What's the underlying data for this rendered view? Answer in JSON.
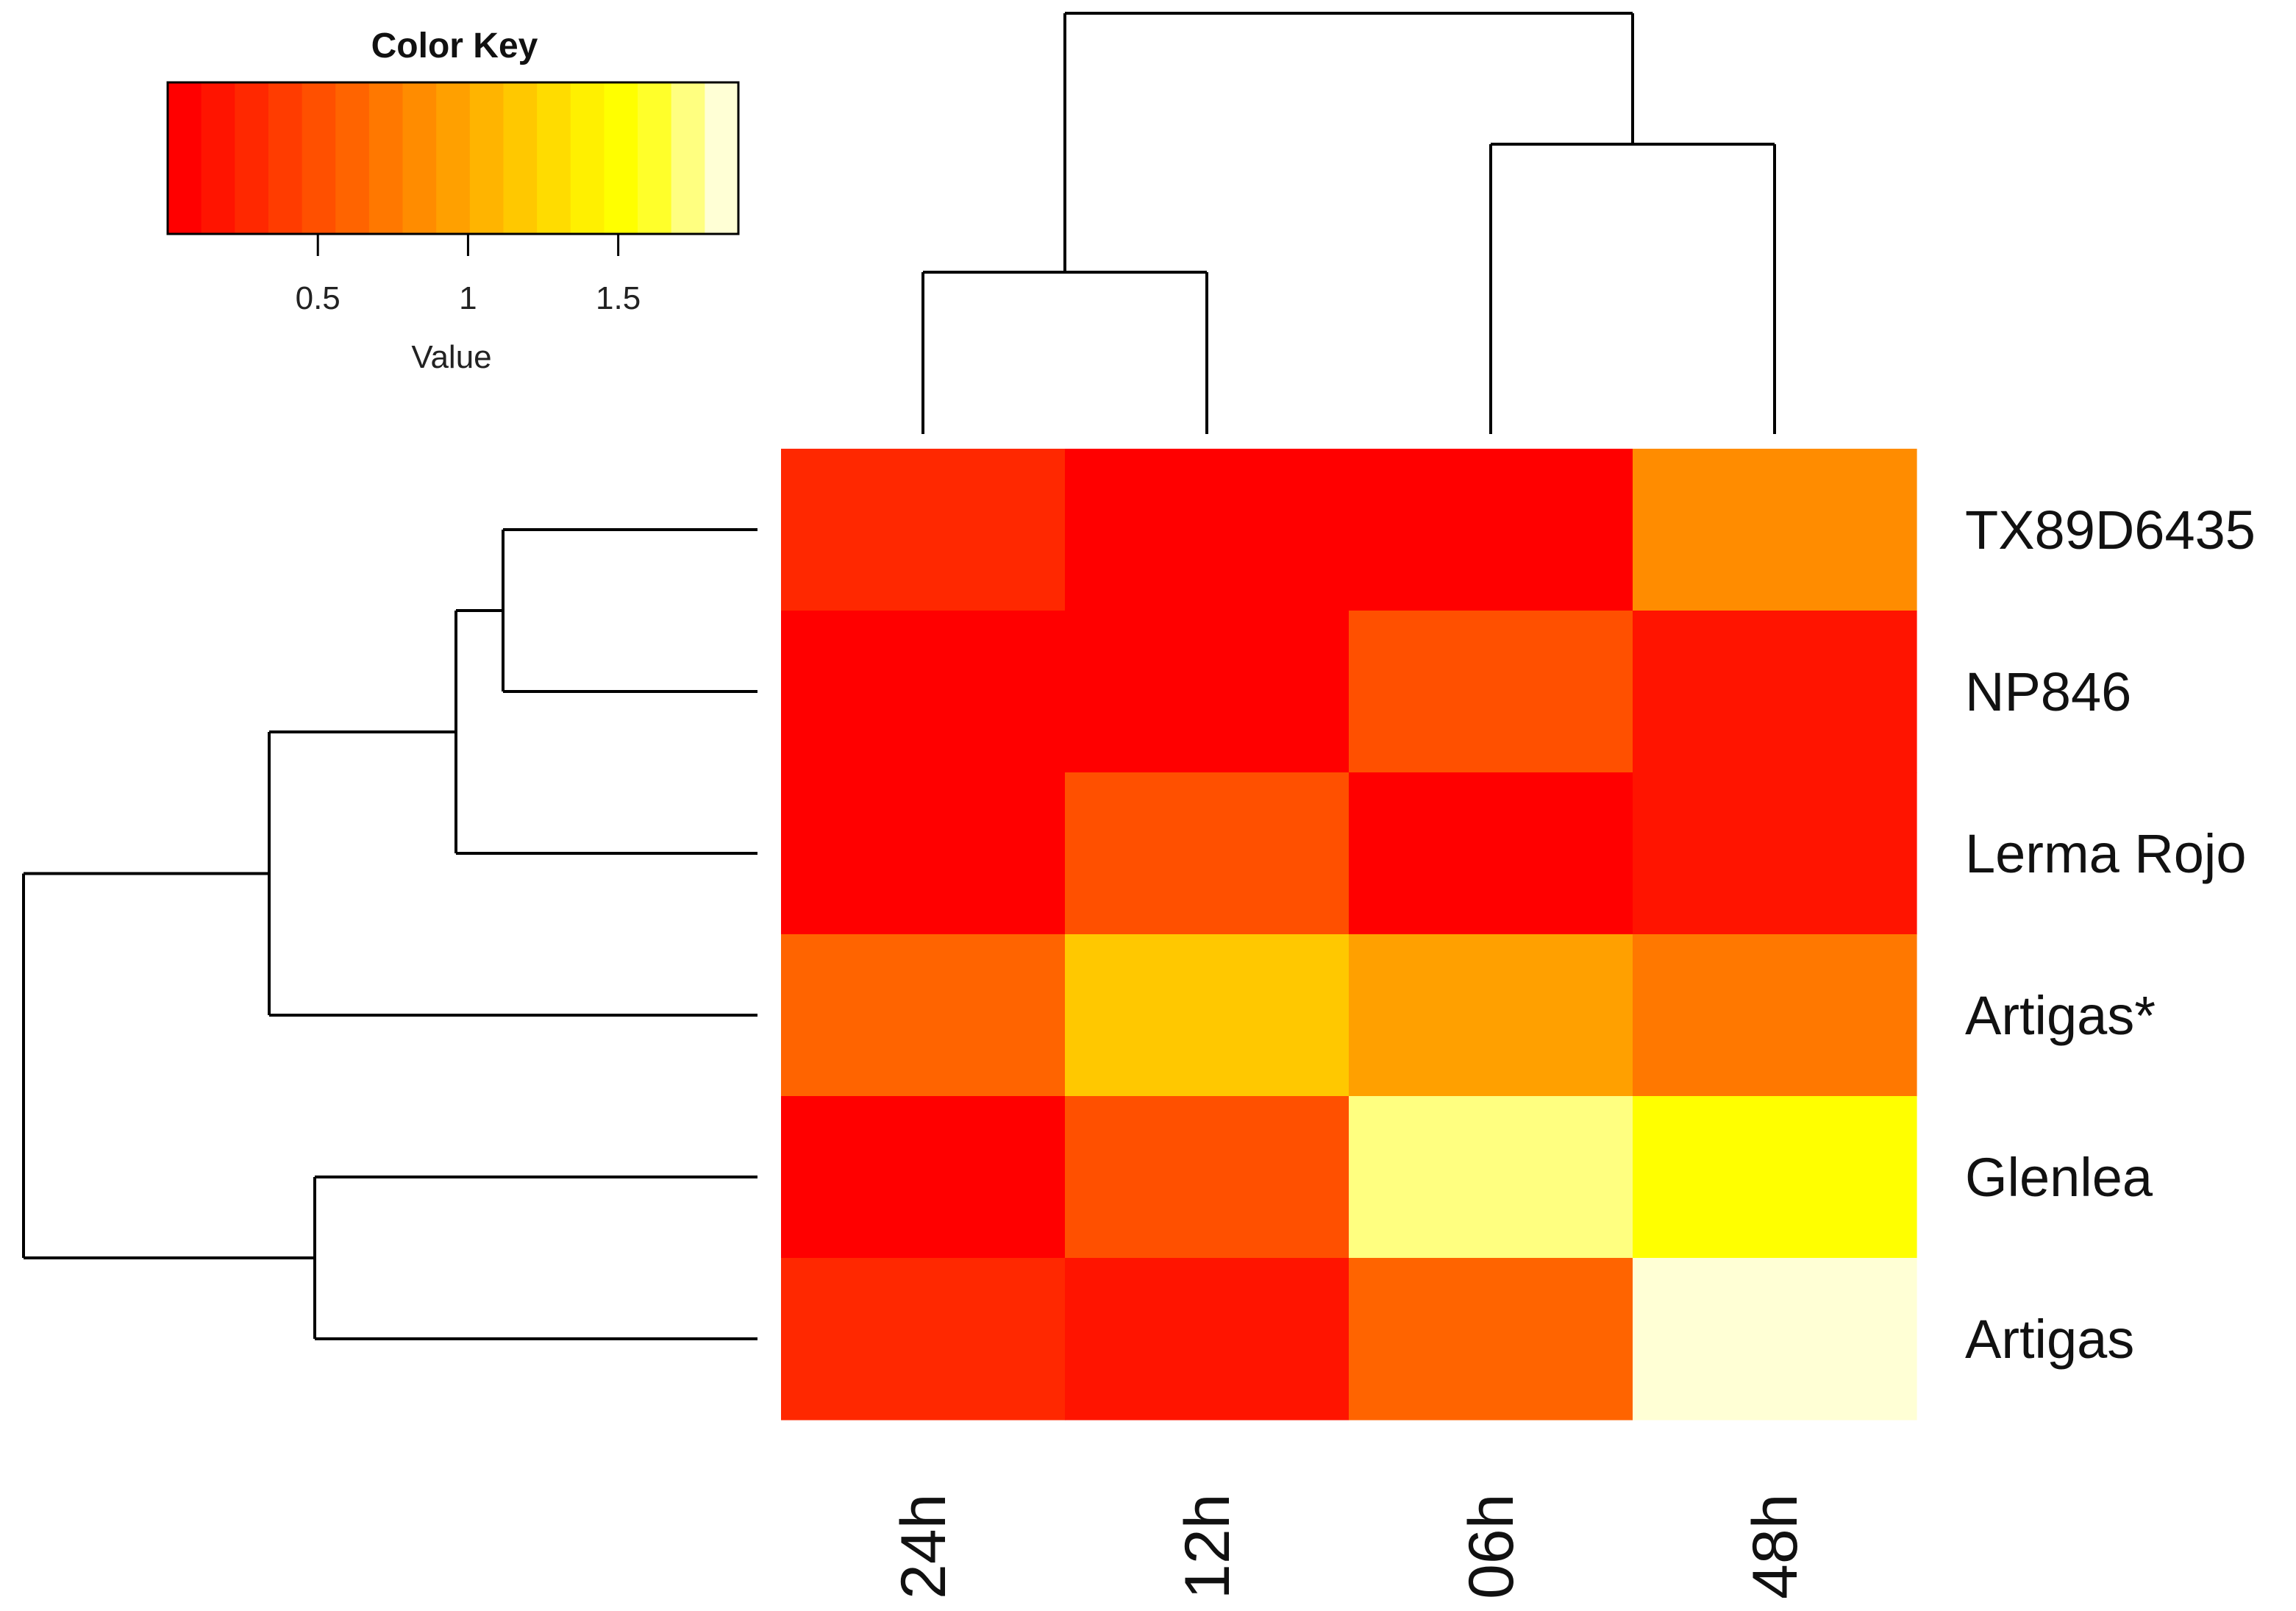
{
  "chart_data": {
    "type": "heatmap",
    "title": "",
    "xlabel": "",
    "ylabel": "",
    "columns": [
      "24h",
      "12h",
      "06h",
      "48h"
    ],
    "rows": [
      "TX89D6435",
      "NP846",
      "Lerma Rojo",
      "Artigas*",
      "Glenlea",
      "Artigas"
    ],
    "values": [
      [
        0.3,
        0.02,
        0.1,
        0.8
      ],
      [
        0.1,
        0.02,
        0.5,
        0.2
      ],
      [
        0.02,
        0.5,
        0.02,
        0.2
      ],
      [
        0.65,
        1.15,
        0.95,
        0.7
      ],
      [
        0.08,
        0.5,
        1.7,
        1.5
      ],
      [
        0.3,
        0.2,
        0.6,
        1.85
      ]
    ],
    "color_key": {
      "title": "Color Key",
      "axis_label": "Value",
      "range": [
        0,
        1.9
      ],
      "ticks": [
        0.5,
        1,
        1.5
      ],
      "tick_labels": [
        "0.5",
        "1",
        "1.5"
      ],
      "colors": [
        "#ff0000",
        "#ff1400",
        "#ff2800",
        "#ff3c00",
        "#ff5000",
        "#ff6400",
        "#ff7800",
        "#ff8c00",
        "#ffa000",
        "#ffb400",
        "#ffc800",
        "#ffdc00",
        "#fff000",
        "#ffff00",
        "#ffff2a",
        "#ffff80",
        "#ffffd5"
      ]
    },
    "legend_position": "top-left",
    "grid": false,
    "row_dendrogram": "(((TX89D6435,NP846),Lerma Rojo),Artigas*),(Glenlea,Artigas)",
    "col_dendrogram": "(24h,12h),(06h,48h)"
  }
}
